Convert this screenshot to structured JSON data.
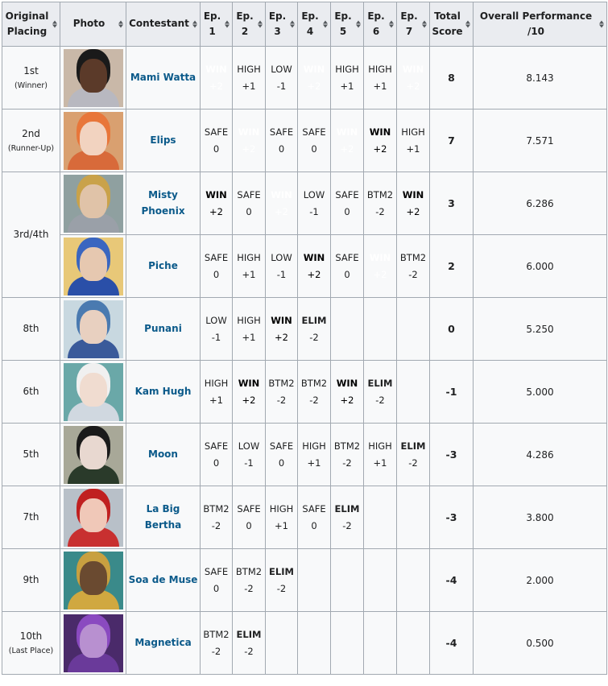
{
  "headers": {
    "placing": [
      "Original",
      "Placing"
    ],
    "photo": "Photo",
    "contestant": "Contestant",
    "episodes": [
      [
        "Ep.",
        "1"
      ],
      [
        "Ep.",
        "2"
      ],
      [
        "Ep.",
        "3"
      ],
      [
        "Ep.",
        "4"
      ],
      [
        "Ep.",
        "5"
      ],
      [
        "Ep.",
        "6"
      ],
      [
        "Ep.",
        "7"
      ]
    ],
    "total": [
      "Total",
      "Score"
    ],
    "performance": "Overall Performance /10"
  },
  "colors": {
    "win": "#4169e1",
    "win_alt": "#00bfff",
    "high": "#add8e6",
    "safe": "#ffffff",
    "low": "#ffb6c1",
    "btm2": "#ff6347",
    "btm2_alt": "#ff69b4",
    "elim": "#ff0000",
    "blank": "#a9a9a9",
    "score_bg": "#d9d9d9",
    "link": "#0b5a8a"
  },
  "rows": [
    {
      "placing": "1st",
      "placing_note": "(Winner)",
      "name_lines": [
        "Mami Watta"
      ],
      "photo": {
        "bg": "#c9b8a8",
        "skin": "#5b3a29",
        "hair": "#1a1a1a",
        "outfit": "#b8b8c0"
      },
      "eps": [
        {
          "r": "WIN",
          "s": "+2",
          "c": "win"
        },
        {
          "r": "HIGH",
          "s": "+1",
          "c": "high"
        },
        {
          "r": "LOW",
          "s": "-1",
          "c": "low"
        },
        {
          "r": "WIN",
          "s": "+2",
          "c": "win"
        },
        {
          "r": "HIGH",
          "s": "+1",
          "c": "high"
        },
        {
          "r": "HIGH",
          "s": "+1",
          "c": "high"
        },
        {
          "r": "WIN",
          "s": "+2",
          "c": "win"
        }
      ],
      "total": "8",
      "performance": "8.143"
    },
    {
      "placing": "2nd",
      "placing_note": "(Runner-Up)",
      "name_lines": [
        "Elips"
      ],
      "photo": {
        "bg": "#d9a070",
        "skin": "#f2d3c0",
        "hair": "#e8763a",
        "outfit": "#d86a3a"
      },
      "eps": [
        {
          "r": "SAFE",
          "s": "0",
          "c": "safe"
        },
        {
          "r": "WIN",
          "s": "+2",
          "c": "win"
        },
        {
          "r": "SAFE",
          "s": "0",
          "c": "safe"
        },
        {
          "r": "SAFE",
          "s": "0",
          "c": "safe"
        },
        {
          "r": "WIN",
          "s": "+2",
          "c": "win"
        },
        {
          "r": "WIN",
          "s": "+2",
          "c": "win2"
        },
        {
          "r": "HIGH",
          "s": "+1",
          "c": "high"
        }
      ],
      "total": "7",
      "performance": "7.571"
    },
    {
      "placing": "3rd/4th",
      "placing_note": "",
      "name_lines": [
        "Misty Phoenix"
      ],
      "photo": {
        "bg": "#8fa0a0",
        "skin": "#e0c3a8",
        "hair": "#c9a24a",
        "outfit": "#9aa0a8"
      },
      "eps": [
        {
          "r": "WIN",
          "s": "+2",
          "c": "win2"
        },
        {
          "r": "SAFE",
          "s": "0",
          "c": "safe"
        },
        {
          "r": "WIN",
          "s": "+2",
          "c": "win"
        },
        {
          "r": "LOW",
          "s": "-1",
          "c": "low"
        },
        {
          "r": "SAFE",
          "s": "0",
          "c": "safe"
        },
        {
          "r": "BTM2",
          "s": "-2",
          "c": "btm"
        },
        {
          "r": "WIN",
          "s": "+2",
          "c": "win2"
        }
      ],
      "total": "3",
      "performance": "6.286"
    },
    {
      "name_lines": [
        "Piche"
      ],
      "photo": {
        "bg": "#e8c878",
        "skin": "#e6c8b0",
        "hair": "#3a66c0",
        "outfit": "#2a4fa8"
      },
      "eps": [
        {
          "r": "SAFE",
          "s": "0",
          "c": "safe"
        },
        {
          "r": "HIGH",
          "s": "+1",
          "c": "high"
        },
        {
          "r": "LOW",
          "s": "-1",
          "c": "low"
        },
        {
          "r": "WIN",
          "s": "+2",
          "c": "win2"
        },
        {
          "r": "SAFE",
          "s": "0",
          "c": "safe"
        },
        {
          "r": "WIN",
          "s": "+2",
          "c": "win"
        },
        {
          "r": "BTM2",
          "s": "-2",
          "c": "btm"
        }
      ],
      "total": "2",
      "performance": "6.000"
    },
    {
      "placing": "8th",
      "placing_note": "",
      "name_lines": [
        "Punani"
      ],
      "photo": {
        "bg": "#c8d8e0",
        "skin": "#e8d0c0",
        "hair": "#4a7ab0",
        "outfit": "#3a5a9a"
      },
      "eps": [
        {
          "r": "LOW",
          "s": "-1",
          "c": "low"
        },
        {
          "r": "HIGH",
          "s": "+1",
          "c": "high"
        },
        {
          "r": "WIN",
          "s": "+2",
          "c": "win2"
        },
        {
          "r": "ELIM",
          "s": "-2",
          "c": "elim"
        },
        {
          "r": "",
          "s": "",
          "c": "blank"
        },
        {
          "r": "",
          "s": "",
          "c": "blank"
        },
        {
          "r": "",
          "s": "",
          "c": "blank"
        }
      ],
      "total": "0",
      "performance": "5.250"
    },
    {
      "placing": "6th",
      "placing_note": "",
      "name_lines": [
        "Kam Hugh"
      ],
      "photo": {
        "bg": "#6aa8a8",
        "skin": "#f0dcd0",
        "hair": "#f0f0f0",
        "outfit": "#d0d8e0"
      },
      "eps": [
        {
          "r": "HIGH",
          "s": "+1",
          "c": "high"
        },
        {
          "r": "WIN",
          "s": "+2",
          "c": "win2"
        },
        {
          "r": "BTM2",
          "s": "-2",
          "c": "btm"
        },
        {
          "r": "BTM2",
          "s": "-2",
          "c": "btm"
        },
        {
          "r": "WIN",
          "s": "+2",
          "c": "win2"
        },
        {
          "r": "ELIM",
          "s": "-2",
          "c": "elim"
        },
        {
          "r": "",
          "s": "",
          "c": "blank"
        }
      ],
      "total": "-1",
      "performance": "5.000"
    },
    {
      "placing": "5th",
      "placing_note": "",
      "name_lines": [
        "Moon"
      ],
      "photo": {
        "bg": "#a8a898",
        "skin": "#e8d8d0",
        "hair": "#1a1a1a",
        "outfit": "#2a3a2a"
      },
      "eps": [
        {
          "r": "SAFE",
          "s": "0",
          "c": "safe"
        },
        {
          "r": "LOW",
          "s": "-1",
          "c": "low"
        },
        {
          "r": "SAFE",
          "s": "0",
          "c": "safe"
        },
        {
          "r": "HIGH",
          "s": "+1",
          "c": "high"
        },
        {
          "r": "BTM2",
          "s": "-2",
          "c": "btm"
        },
        {
          "r": "HIGH",
          "s": "+1",
          "c": "high"
        },
        {
          "r": "ELIM",
          "s": "-2",
          "c": "elim"
        }
      ],
      "total": "-3",
      "performance": "4.286"
    },
    {
      "placing": "7th",
      "placing_note": "",
      "name_lines": [
        "La Big",
        "Bertha"
      ],
      "photo": {
        "bg": "#b8c0c8",
        "skin": "#f0c8b8",
        "hair": "#c02020",
        "outfit": "#c83030"
      },
      "eps": [
        {
          "r": "BTM2",
          "s": "-2",
          "c": "btmpink"
        },
        {
          "r": "SAFE",
          "s": "0",
          "c": "safe"
        },
        {
          "r": "HIGH",
          "s": "+1",
          "c": "high"
        },
        {
          "r": "SAFE",
          "s": "0",
          "c": "safe"
        },
        {
          "r": "ELIM",
          "s": "-2",
          "c": "elim"
        },
        {
          "r": "",
          "s": "",
          "c": "blank"
        },
        {
          "r": "",
          "s": "",
          "c": "blank"
        }
      ],
      "total": "-3",
      "performance": "3.800"
    },
    {
      "placing": "9th",
      "placing_note": "",
      "name_lines": [
        "Soa de Muse"
      ],
      "photo": {
        "bg": "#3a8a8a",
        "skin": "#6a4a30",
        "hair": "#c8a040",
        "outfit": "#d0a840"
      },
      "eps": [
        {
          "r": "SAFE",
          "s": "0",
          "c": "safe"
        },
        {
          "r": "BTM2",
          "s": "-2",
          "c": "btm"
        },
        {
          "r": "ELIM",
          "s": "-2",
          "c": "elim"
        },
        {
          "r": "",
          "s": "",
          "c": "blank"
        },
        {
          "r": "",
          "s": "",
          "c": "blank"
        },
        {
          "r": "",
          "s": "",
          "c": "blank"
        },
        {
          "r": "",
          "s": "",
          "c": "blank"
        }
      ],
      "total": "-4",
      "performance": "2.000"
    },
    {
      "placing": "10th",
      "placing_note": "(Last Place)",
      "name_lines": [
        "Magnetica"
      ],
      "photo": {
        "bg": "#4a2a6a",
        "skin": "#b890d0",
        "hair": "#8a4ac0",
        "outfit": "#6a3a9a"
      },
      "eps": [
        {
          "r": "BTM2",
          "s": "-2",
          "c": "btmpink"
        },
        {
          "r": "ELIM",
          "s": "-2",
          "c": "elim"
        },
        {
          "r": "",
          "s": "",
          "c": "blank"
        },
        {
          "r": "",
          "s": "",
          "c": "blank"
        },
        {
          "r": "",
          "s": "",
          "c": "blank"
        },
        {
          "r": "",
          "s": "",
          "c": "blank"
        },
        {
          "r": "",
          "s": "",
          "c": "blank"
        }
      ],
      "total": "-4",
      "performance": "0.500"
    }
  ]
}
